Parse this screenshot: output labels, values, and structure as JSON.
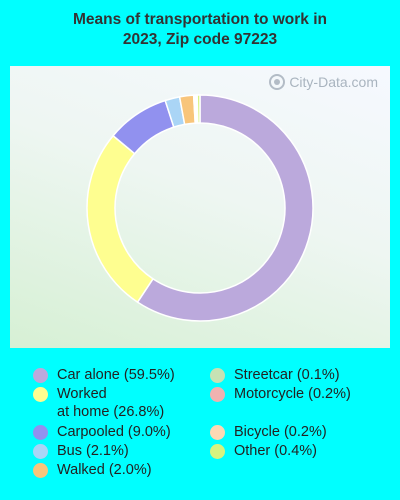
{
  "chart_data": {
    "type": "pie",
    "title_line1": "Means of transportation to work in",
    "title_line2": "2023, Zip code 97223",
    "watermark": "City-Data.com",
    "slices": [
      {
        "label": "Car alone (59.5%)",
        "value": 59.5,
        "color": "#bba9dc"
      },
      {
        "label": "Worked\nat home (26.8%)",
        "value": 26.8,
        "color": "#fefe90"
      },
      {
        "label": "Carpooled (9.0%)",
        "value": 9.0,
        "color": "#9191ef"
      },
      {
        "label": "Bus (2.1%)",
        "value": 2.1,
        "color": "#aad5f6"
      },
      {
        "label": "Walked (2.0%)",
        "value": 2.0,
        "color": "#f8c57b"
      },
      {
        "label": "Streetcar (0.1%)",
        "value": 0.1,
        "color": "#c6e2b4"
      },
      {
        "label": "Motorcycle (0.2%)",
        "value": 0.2,
        "color": "#f0b2b0"
      },
      {
        "label": "Bicycle (0.2%)",
        "value": 0.2,
        "color": "#fcd9b4"
      },
      {
        "label": "Other (0.4%)",
        "value": 0.4,
        "color": "#d6f37f"
      }
    ]
  }
}
